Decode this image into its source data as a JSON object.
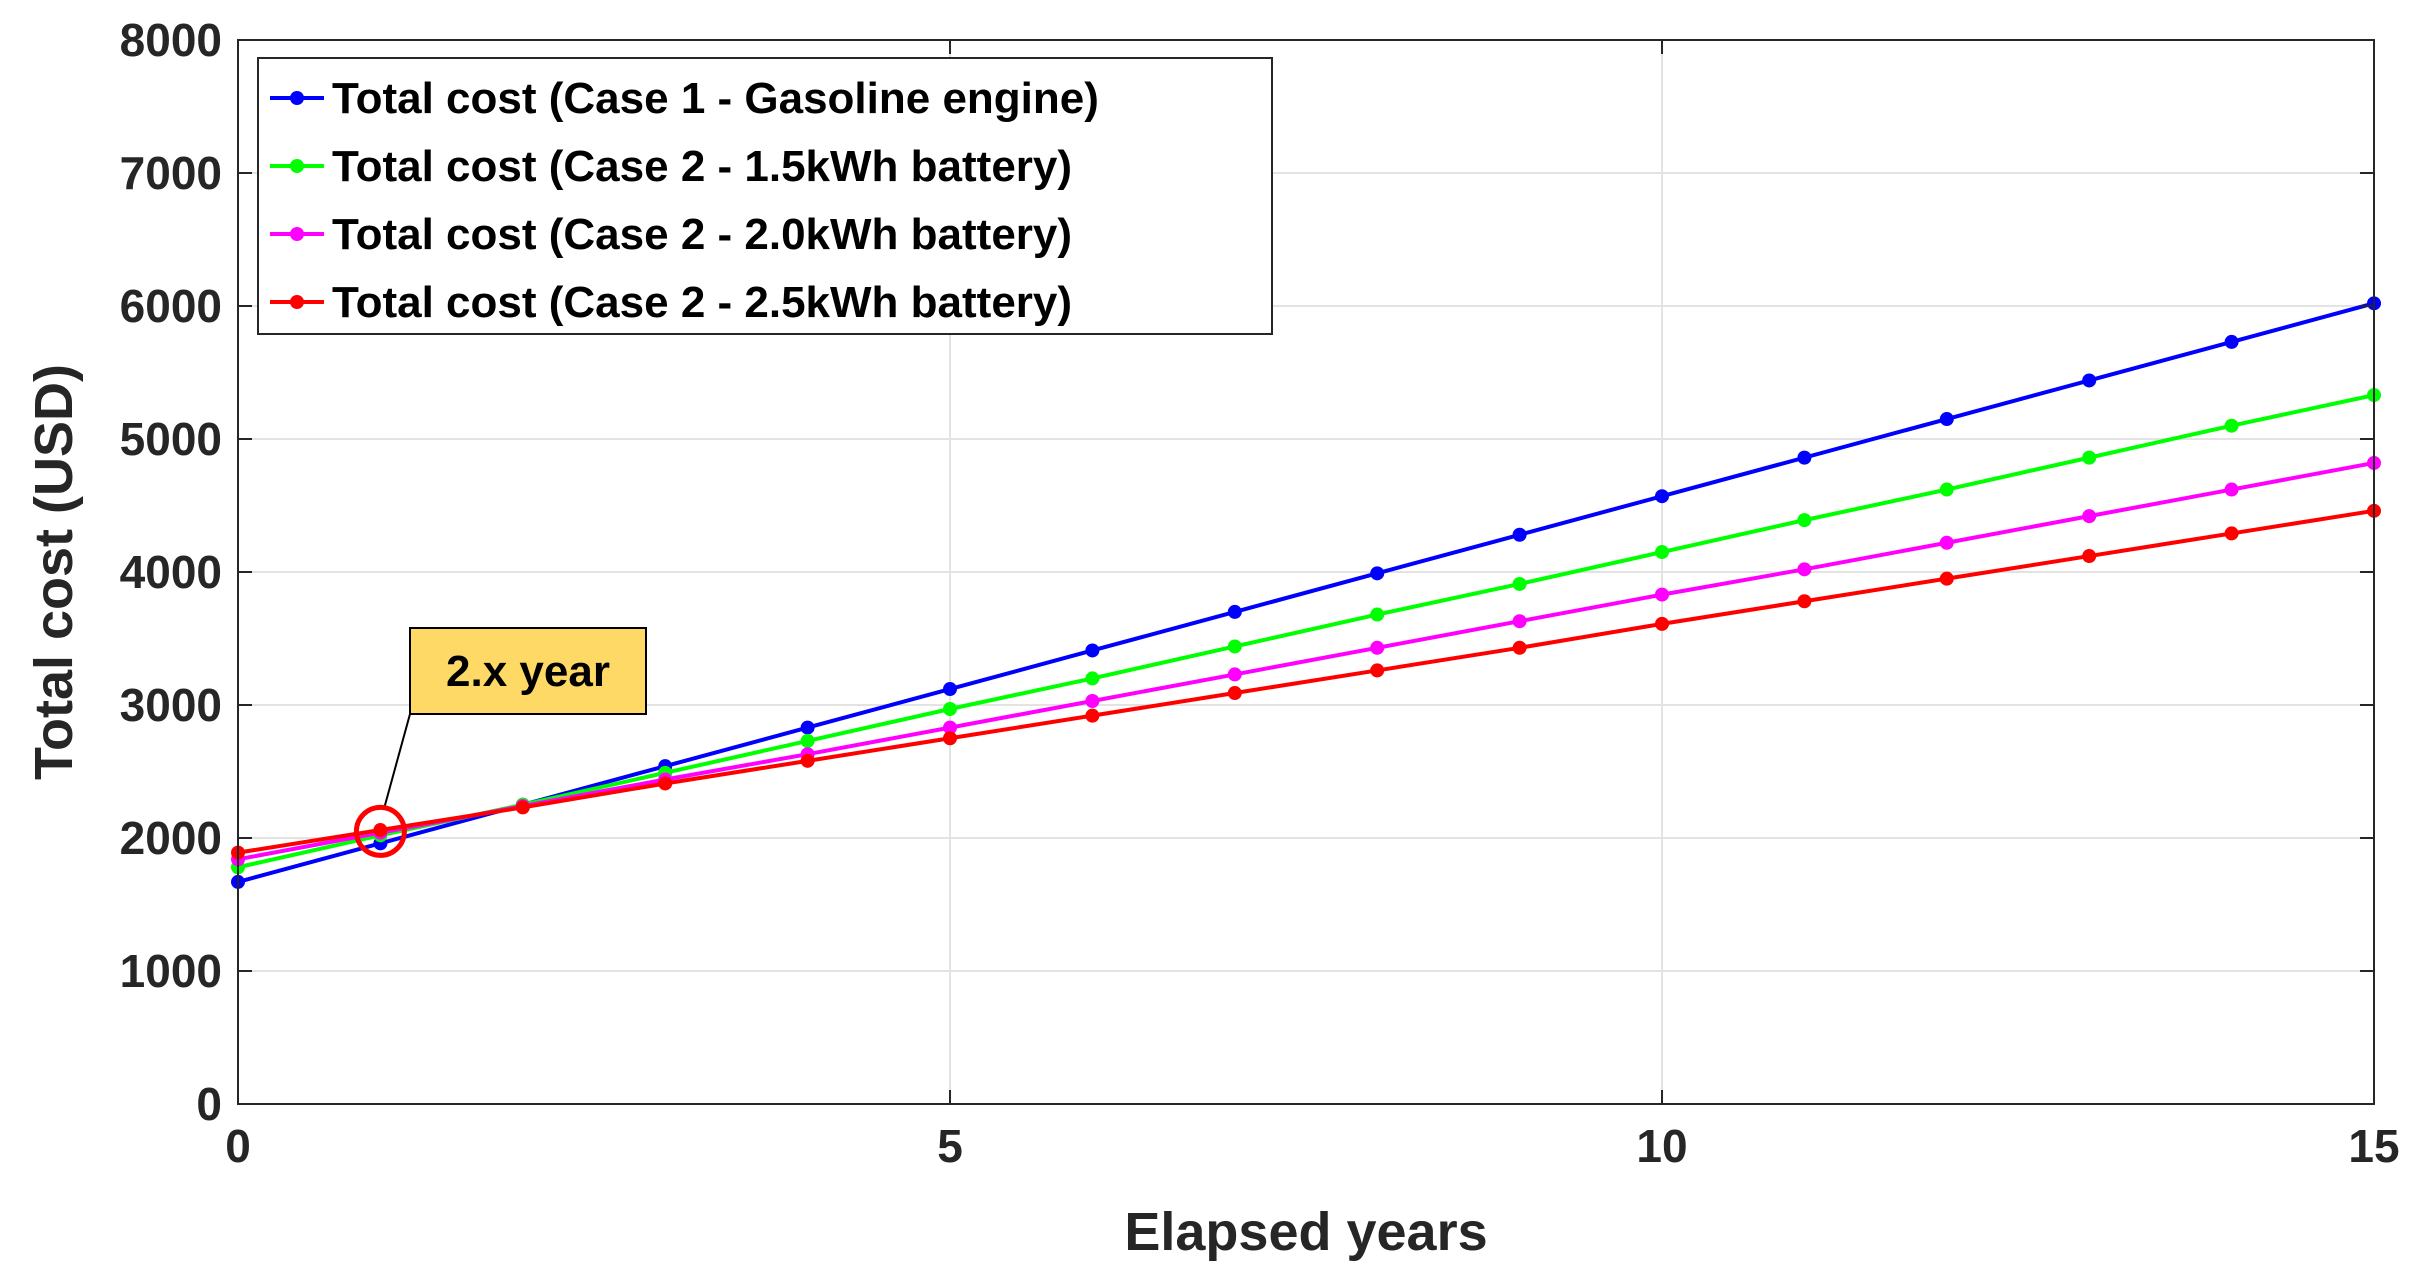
{
  "chart_data": {
    "type": "line",
    "title": "",
    "xlabel": "Elapsed years",
    "ylabel": "Total cost (USD)",
    "xlim": [
      0,
      15
    ],
    "ylim": [
      0,
      8000
    ],
    "xticks": [
      0,
      5,
      10,
      15
    ],
    "xtick_labels": [
      "0",
      "5",
      "10",
      "15"
    ],
    "yticks": [
      0,
      1000,
      2000,
      3000,
      4000,
      5000,
      6000,
      7000,
      8000
    ],
    "ytick_labels": [
      "0",
      "1000",
      "2000",
      "3000",
      "4000",
      "5000",
      "6000",
      "7000",
      "8000"
    ],
    "grid": true,
    "legend_position": "top-left",
    "x": [
      0,
      1,
      2,
      3,
      4,
      5,
      6,
      7,
      8,
      9,
      10,
      11,
      12,
      13,
      14,
      15
    ],
    "series": [
      {
        "name": "Total cost (Case 1 - Gasoline engine)",
        "color": "#0000ff",
        "values": [
          1670,
          1960,
          2250,
          2540,
          2830,
          3120,
          3410,
          3700,
          3990,
          4280,
          4570,
          4860,
          5150,
          5440,
          5730,
          6020
        ]
      },
      {
        "name": "Total cost (Case 2 - 1.5kWh battery)",
        "color": "#00ff00",
        "values": [
          1780,
          2020,
          2250,
          2490,
          2730,
          2970,
          3200,
          3440,
          3680,
          3910,
          4150,
          4390,
          4620,
          4860,
          5100,
          5330
        ]
      },
      {
        "name": "Total cost (Case 2 - 2.0kWh battery)",
        "color": "#ff00ff",
        "values": [
          1840,
          2040,
          2240,
          2440,
          2630,
          2830,
          3030,
          3230,
          3430,
          3630,
          3830,
          4020,
          4220,
          4420,
          4620,
          4820
        ]
      },
      {
        "name": "Total cost (Case 2 - 2.5kWh battery)",
        "color": "#ff0000",
        "values": [
          1890,
          2060,
          2230,
          2410,
          2580,
          2750,
          2920,
          3090,
          3260,
          3430,
          3610,
          3780,
          3950,
          4120,
          4290,
          4460
        ]
      }
    ],
    "annotations": [
      {
        "text": "2.x year",
        "target_x": 1.0,
        "target_y": 2050,
        "box_color": "#ffd966",
        "marker_color": "#ff0000"
      }
    ]
  }
}
